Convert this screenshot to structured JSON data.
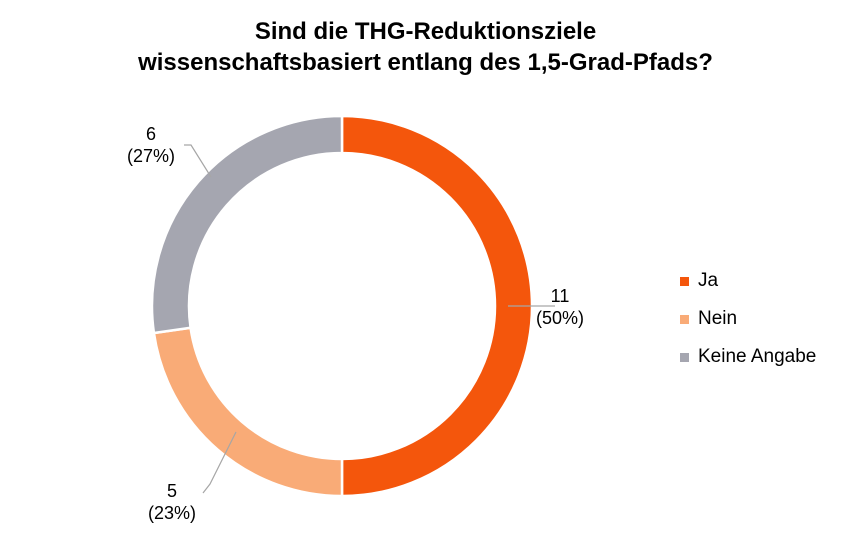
{
  "chart_data": {
    "type": "pie",
    "variant": "donut",
    "title": [
      "Sind die THG-Reduktionsziele",
      "wissenschaftsbasiert entlang des 1,5-Grad-Pfads?"
    ],
    "categories": [
      "Ja",
      "Nein",
      "Keine Angabe"
    ],
    "values": [
      11,
      5,
      6
    ],
    "percent_labels": [
      "(50%)",
      "(23%)",
      "(27%)"
    ],
    "colors": [
      "#F4560C",
      "#F9AB77",
      "#A5A6B0"
    ],
    "legend_position": "right"
  }
}
